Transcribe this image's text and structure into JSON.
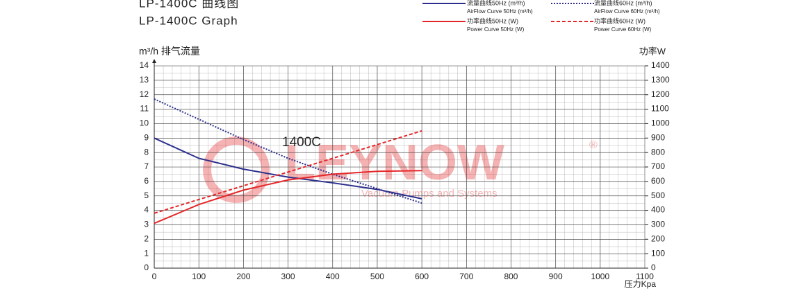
{
  "chart_data": {
    "type": "line",
    "title": "LP-1400C   曲线图",
    "subtitle": "LP-1400C   Graph",
    "y_label": "m³/h 排气流量",
    "y2_label": "功率W",
    "x_label": "压力Kpa",
    "annotation": "1400C",
    "watermark": "LEYNOW",
    "watermark_mark": "®",
    "watermark_tagline": "Vacuum Pumps and Systems",
    "x": [
      0,
      100,
      200,
      300,
      400,
      500,
      600
    ],
    "series": [
      {
        "name": "流量曲线50Hz (m³/h)",
        "name_en": "AirFlow Curve 50Hz (m³/h)",
        "color": "#2b2e8c",
        "dash": "solid",
        "values": [
          9,
          7.6,
          6.85,
          6.3,
          5.9,
          5.45,
          4.8
        ]
      },
      {
        "name": "流量曲线60Hz (m³/h)",
        "name_en": "AirFlow Curve 60Hz (m³/h)",
        "color": "#2b2e8c",
        "dash": "dotted",
        "values": [
          11.7,
          10.3,
          8.9,
          7.6,
          6.5,
          5.5,
          4.5
        ]
      },
      {
        "name": "功率曲线50Hz (W)",
        "name_en": "Power Curve 50Hz (W)",
        "color": "#e52628",
        "dash": "solid",
        "axis": "y2",
        "values": [
          310,
          440,
          540,
          610,
          650,
          670,
          675
        ]
      },
      {
        "name": "功率曲线60Hz (W)",
        "name_en": "Power Curve 60Hz (W)",
        "color": "#e52628",
        "dash": "dashed",
        "axis": "y2",
        "values": [
          380,
          475,
          570,
          665,
          760,
          855,
          950
        ]
      }
    ],
    "xlim": [
      0,
      1100
    ],
    "xticks": [
      0,
      100,
      200,
      300,
      400,
      500,
      600,
      700,
      800,
      900,
      1000,
      1100
    ],
    "ylim": [
      0,
      14
    ],
    "yticks": [
      0,
      1,
      2,
      3,
      4,
      5,
      6,
      7,
      8,
      9,
      10,
      11,
      12,
      13,
      14
    ],
    "y2lim": [
      0,
      1400
    ],
    "y2ticks": [
      0,
      100,
      200,
      300,
      400,
      500,
      600,
      700,
      800,
      900,
      1000,
      1100,
      1200,
      1300,
      1400
    ],
    "grid": true
  }
}
